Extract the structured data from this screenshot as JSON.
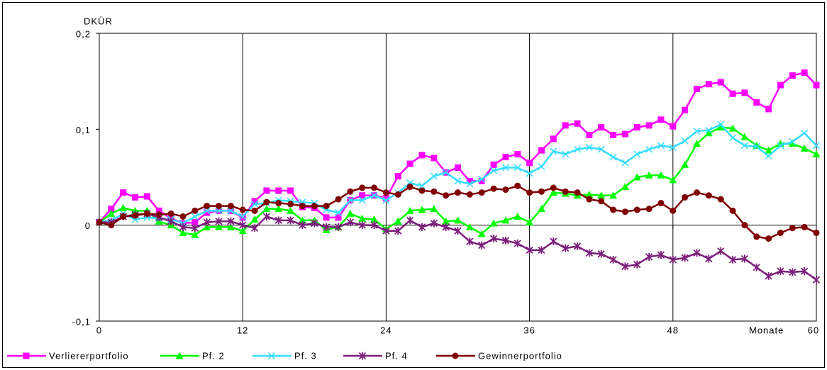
{
  "chart_data": {
    "type": "line",
    "y_label": "DKÜR",
    "x_label": "Monate",
    "x": [
      0,
      1,
      2,
      3,
      4,
      5,
      6,
      7,
      8,
      9,
      10,
      11,
      12,
      13,
      14,
      15,
      16,
      17,
      18,
      19,
      20,
      21,
      22,
      23,
      24,
      25,
      26,
      27,
      28,
      29,
      30,
      31,
      32,
      33,
      34,
      35,
      36,
      37,
      38,
      39,
      40,
      41,
      42,
      43,
      44,
      45,
      46,
      47,
      48,
      49,
      50,
      51,
      52,
      53,
      54,
      55,
      56,
      57,
      58,
      59,
      60
    ],
    "xlim": [
      0,
      60
    ],
    "xticks": [
      0,
      12,
      24,
      36,
      48,
      60
    ],
    "ylim": [
      -0.1,
      0.2
    ],
    "yticks": [
      {
        "value": 0.2,
        "label": "0,2"
      },
      {
        "value": 0.1,
        "label": "0,1"
      },
      0,
      {
        "value": -0.1,
        "label": "-0,1"
      }
    ],
    "grid": true,
    "legend": "bottom",
    "series": [
      {
        "name": "Verliererportfolio",
        "color": "#ff00ff",
        "marker": "square",
        "values": [
          0.003,
          0.017,
          0.034,
          0.029,
          0.03,
          0.015,
          0.007,
          0.002,
          0.003,
          0.013,
          0.015,
          0.015,
          0.008,
          0.025,
          0.036,
          0.036,
          0.036,
          0.019,
          0.018,
          0.008,
          0.008,
          0.026,
          0.031,
          0.031,
          0.028,
          0.051,
          0.064,
          0.073,
          0.07,
          0.055,
          0.06,
          0.046,
          0.046,
          0.063,
          0.071,
          0.074,
          0.065,
          0.078,
          0.09,
          0.104,
          0.106,
          0.094,
          0.102,
          0.094,
          0.095,
          0.102,
          0.104,
          0.11,
          0.103,
          0.12,
          0.142,
          0.147,
          0.149,
          0.137,
          0.138,
          0.128,
          0.121,
          0.146,
          0.156,
          0.159,
          0.146
        ]
      },
      {
        "name": "Pf. 2",
        "color": "#00ff00",
        "marker": "triangle",
        "values": [
          0.003,
          0.012,
          0.018,
          0.015,
          0.015,
          0.004,
          0.0,
          -0.008,
          -0.01,
          -0.002,
          -0.002,
          -0.002,
          -0.006,
          0.006,
          0.017,
          0.017,
          0.015,
          0.005,
          0.005,
          -0.005,
          -0.002,
          0.012,
          0.007,
          0.006,
          -0.004,
          0.004,
          0.015,
          0.016,
          0.017,
          0.004,
          0.005,
          -0.002,
          -0.009,
          0.002,
          0.005,
          0.009,
          0.003,
          0.017,
          0.034,
          0.033,
          0.031,
          0.032,
          0.031,
          0.031,
          0.04,
          0.05,
          0.052,
          0.052,
          0.047,
          0.063,
          0.085,
          0.096,
          0.102,
          0.101,
          0.092,
          0.083,
          0.078,
          0.085,
          0.085,
          0.08,
          0.074
        ]
      },
      {
        "name": "Pf. 3",
        "color": "#33ddff",
        "marker": "x",
        "values": [
          0.003,
          0.005,
          0.012,
          0.006,
          0.008,
          0.007,
          0.006,
          0.002,
          0.009,
          0.015,
          0.015,
          0.015,
          0.009,
          0.022,
          0.023,
          0.026,
          0.025,
          0.024,
          0.023,
          0.016,
          0.013,
          0.026,
          0.026,
          0.031,
          0.026,
          0.034,
          0.044,
          0.041,
          0.051,
          0.055,
          0.046,
          0.043,
          0.048,
          0.057,
          0.06,
          0.06,
          0.054,
          0.061,
          0.077,
          0.074,
          0.079,
          0.081,
          0.079,
          0.071,
          0.065,
          0.074,
          0.079,
          0.083,
          0.081,
          0.088,
          0.098,
          0.099,
          0.105,
          0.091,
          0.083,
          0.082,
          0.072,
          0.083,
          0.087,
          0.096,
          0.083
        ]
      },
      {
        "name": "Pf. 4",
        "color": "#7b1f7b",
        "marker": "star",
        "values": [
          0.003,
          0.003,
          0.009,
          0.011,
          0.012,
          0.008,
          0.004,
          -0.002,
          -0.003,
          0.003,
          0.004,
          0.004,
          0.0,
          -0.003,
          0.009,
          0.005,
          0.005,
          0.0,
          0.002,
          -0.002,
          -0.002,
          0.003,
          0.0,
          0.0,
          -0.006,
          -0.006,
          0.005,
          -0.002,
          0.002,
          -0.002,
          -0.006,
          -0.017,
          -0.021,
          -0.014,
          -0.016,
          -0.019,
          -0.026,
          -0.026,
          -0.017,
          -0.024,
          -0.022,
          -0.029,
          -0.03,
          -0.036,
          -0.043,
          -0.041,
          -0.033,
          -0.031,
          -0.036,
          -0.034,
          -0.029,
          -0.035,
          -0.027,
          -0.036,
          -0.035,
          -0.044,
          -0.053,
          -0.048,
          -0.049,
          -0.048,
          -0.057
        ]
      },
      {
        "name": "Gewinnerportfolio",
        "color": "#800000",
        "marker": "circle",
        "values": [
          0.003,
          0.0,
          0.009,
          0.01,
          0.012,
          0.011,
          0.012,
          0.009,
          0.015,
          0.02,
          0.02,
          0.02,
          0.016,
          0.015,
          0.024,
          0.023,
          0.022,
          0.02,
          0.02,
          0.02,
          0.027,
          0.035,
          0.039,
          0.039,
          0.034,
          0.032,
          0.04,
          0.036,
          0.035,
          0.031,
          0.034,
          0.032,
          0.034,
          0.038,
          0.037,
          0.041,
          0.034,
          0.035,
          0.039,
          0.035,
          0.034,
          0.027,
          0.025,
          0.016,
          0.014,
          0.016,
          0.017,
          0.023,
          0.015,
          0.029,
          0.034,
          0.031,
          0.027,
          0.015,
          0.0,
          -0.012,
          -0.014,
          -0.008,
          -0.003,
          -0.002,
          -0.008
        ]
      }
    ]
  }
}
